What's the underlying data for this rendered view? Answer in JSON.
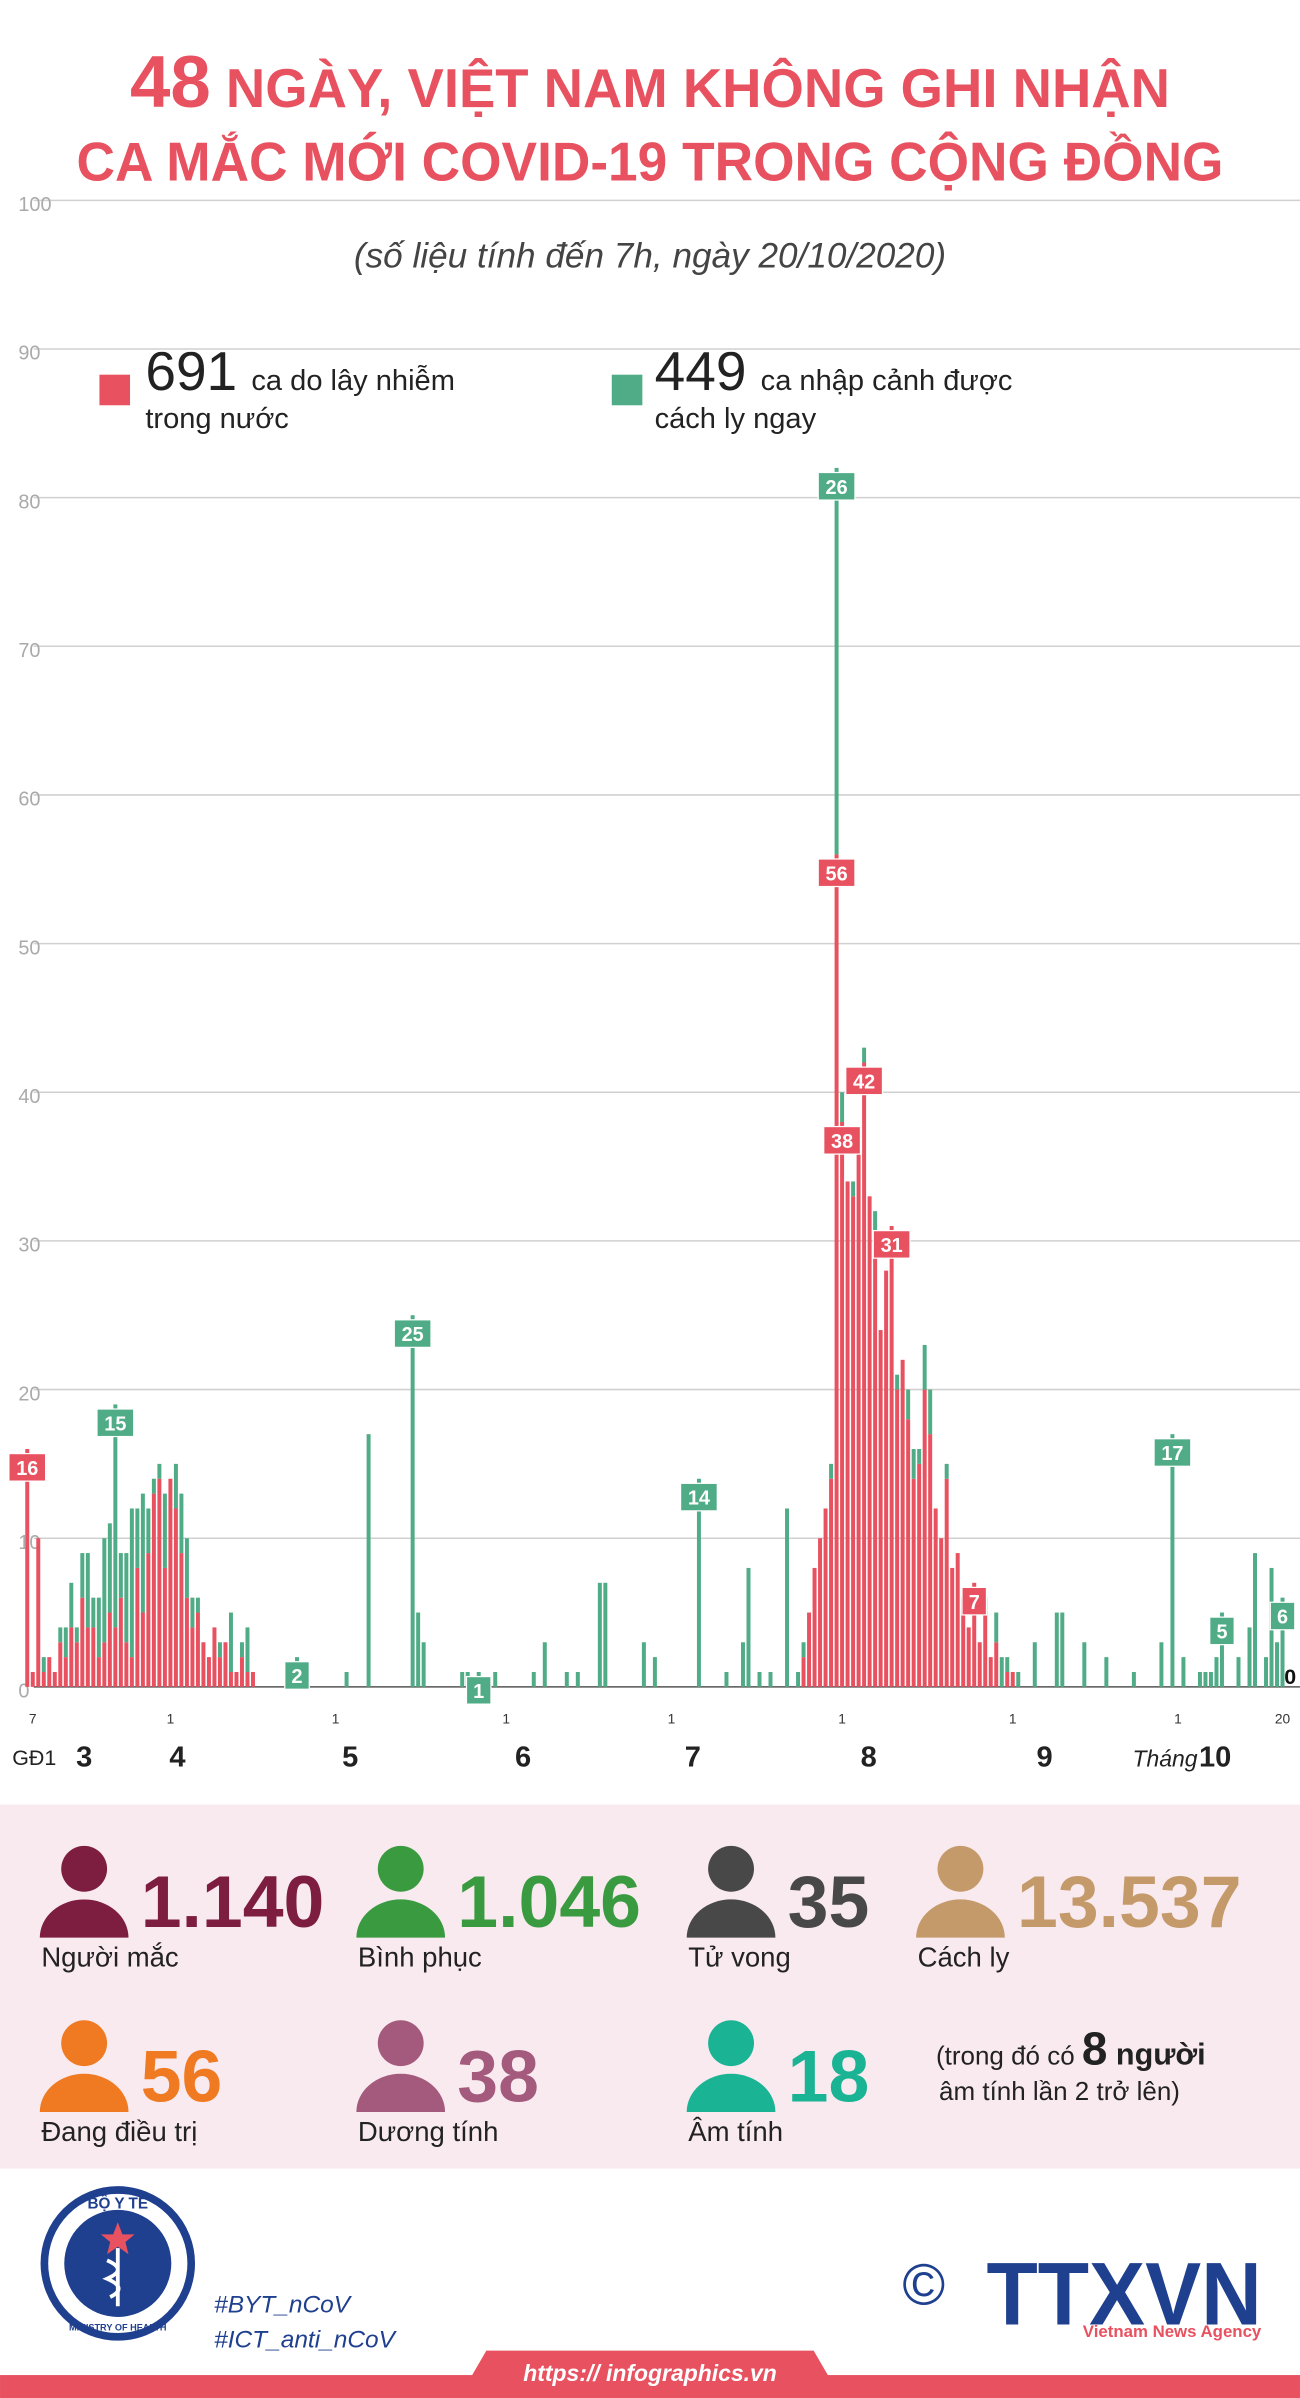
{
  "chart_data": {
    "type": "bar",
    "title": {
      "highlight": "48",
      "line1": "NGÀY, VIỆT NAM KHÔNG GHI NHẬN",
      "line2": "CA MẮC MỚI COVID-19 TRONG CỘNG ĐỒNG"
    },
    "subtitle": "(số liệu tính đến 7h, ngày 20/10/2020)",
    "phase_label": "GĐ1",
    "month_prefix": "Tháng",
    "month_labels": [
      "3",
      "4",
      "5",
      "6",
      "7",
      "8",
      "9",
      "10"
    ],
    "stacked": true,
    "grid": true,
    "ylim": [
      0,
      100
    ],
    "yticks": [
      0,
      10,
      20,
      30,
      40,
      50,
      60,
      70,
      80,
      90,
      100
    ],
    "categories": [
      null,
      "7",
      null,
      null,
      null,
      null,
      null,
      null,
      null,
      null,
      null,
      null,
      null,
      null,
      null,
      null,
      null,
      null,
      null,
      null,
      null,
      null,
      null,
      null,
      null,
      null,
      "1",
      null,
      null,
      null,
      null,
      null,
      null,
      null,
      null,
      null,
      null,
      null,
      null,
      null,
      null,
      null,
      null,
      null,
      null,
      null,
      null,
      null,
      null,
      null,
      null,
      null,
      null,
      null,
      null,
      null,
      "1",
      null,
      null,
      null,
      null,
      null,
      null,
      null,
      null,
      null,
      null,
      null,
      null,
      null,
      null,
      null,
      null,
      null,
      null,
      null,
      null,
      null,
      null,
      null,
      null,
      null,
      null,
      null,
      null,
      null,
      null,
      "1",
      null,
      null,
      null,
      null,
      null,
      null,
      null,
      null,
      null,
      null,
      null,
      null,
      null,
      null,
      null,
      null,
      null,
      null,
      null,
      null,
      null,
      null,
      null,
      null,
      null,
      null,
      null,
      null,
      null,
      "1",
      null,
      null,
      null,
      null,
      null,
      null,
      null,
      null,
      null,
      null,
      null,
      null,
      null,
      null,
      null,
      null,
      null,
      null,
      null,
      null,
      null,
      null,
      null,
      null,
      null,
      null,
      null,
      null,
      null,
      null,
      "1",
      null,
      null,
      null,
      null,
      null,
      null,
      null,
      null,
      null,
      null,
      null,
      null,
      null,
      null,
      null,
      null,
      null,
      null,
      null,
      null,
      null,
      null,
      null,
      null,
      null,
      null,
      null,
      null,
      null,
      null,
      "1",
      null,
      null,
      null,
      null,
      null,
      null,
      null,
      null,
      null,
      null,
      null,
      null,
      null,
      null,
      null,
      null,
      null,
      null,
      null,
      null,
      null,
      null,
      null,
      null,
      null,
      null,
      null,
      null,
      null,
      "1",
      null,
      null,
      null,
      null,
      null,
      null,
      null,
      null,
      null,
      null,
      null,
      null,
      null,
      null,
      null,
      null,
      null,
      null,
      "20"
    ],
    "series": [
      {
        "name": "ca do lây nhiễm trong nước",
        "total": 691,
        "color": "#e8515f",
        "labeled": [
          0,
          147,
          148,
          152,
          157,
          172,
          228
        ],
        "values": [
          16,
          1,
          10,
          1,
          2,
          1,
          3,
          2,
          4,
          3,
          6,
          4,
          4,
          2,
          3,
          5,
          4,
          6,
          3,
          2,
          8,
          5,
          9,
          13,
          14,
          8,
          14,
          12,
          9,
          6,
          4,
          5,
          3,
          2,
          4,
          2,
          3,
          1,
          1,
          2,
          1,
          1,
          0,
          0,
          0,
          0,
          0,
          0,
          0,
          0,
          0,
          0,
          0,
          0,
          0,
          0,
          0,
          0,
          0,
          0,
          0,
          0,
          0,
          0,
          0,
          0,
          0,
          0,
          0,
          0,
          0,
          0,
          0,
          0,
          0,
          0,
          0,
          0,
          0,
          0,
          0,
          0,
          0,
          0,
          0,
          0,
          0,
          0,
          0,
          0,
          0,
          0,
          0,
          0,
          0,
          0,
          0,
          0,
          0,
          0,
          0,
          0,
          0,
          0,
          0,
          0,
          0,
          0,
          0,
          0,
          0,
          0,
          0,
          0,
          0,
          0,
          0,
          0,
          0,
          0,
          0,
          0,
          0,
          0,
          0,
          0,
          0,
          0,
          0,
          0,
          0,
          0,
          0,
          0,
          0,
          0,
          0,
          0,
          0,
          0,
          0,
          2,
          5,
          8,
          10,
          12,
          14,
          56,
          38,
          34,
          33,
          36,
          42,
          33,
          30,
          24,
          28,
          31,
          20,
          22,
          18,
          14,
          15,
          20,
          17,
          12,
          10,
          14,
          8,
          9,
          5,
          4,
          7,
          3,
          5,
          2,
          3,
          0,
          1,
          1,
          0,
          0,
          0,
          0,
          0,
          0,
          0,
          0,
          0,
          0,
          0,
          0,
          0,
          0,
          0,
          0,
          0,
          0,
          0,
          0,
          0,
          0,
          0,
          0,
          0,
          0,
          0,
          0,
          0,
          0,
          0,
          0,
          0,
          0,
          0,
          0,
          0,
          0,
          0,
          0,
          0,
          0,
          0,
          0,
          0,
          0,
          0,
          0,
          0
        ]
      },
      {
        "name": "ca nhập cảnh được cách ly ngay",
        "total": 449,
        "color": "#4fac86",
        "labeled": [
          16,
          49,
          70,
          82,
          122,
          147,
          208,
          217,
          228
        ],
        "values": [
          0,
          0,
          0,
          1,
          0,
          0,
          1,
          2,
          3,
          1,
          3,
          5,
          2,
          4,
          7,
          6,
          15,
          3,
          6,
          10,
          4,
          8,
          3,
          1,
          1,
          5,
          0,
          3,
          4,
          4,
          2,
          1,
          0,
          0,
          0,
          1,
          0,
          4,
          0,
          1,
          3,
          0,
          0,
          0,
          0,
          0,
          0,
          0,
          0,
          2,
          0,
          0,
          0,
          0,
          0,
          0,
          0,
          0,
          1,
          0,
          0,
          0,
          17,
          0,
          0,
          0,
          0,
          0,
          0,
          0,
          25,
          5,
          3,
          0,
          0,
          0,
          0,
          0,
          0,
          1,
          1,
          0,
          1,
          0,
          0,
          1,
          0,
          0,
          0,
          0,
          0,
          0,
          1,
          0,
          3,
          0,
          0,
          0,
          1,
          0,
          1,
          0,
          0,
          0,
          7,
          7,
          0,
          0,
          0,
          0,
          0,
          0,
          3,
          0,
          2,
          0,
          0,
          0,
          0,
          0,
          0,
          0,
          14,
          0,
          0,
          0,
          0,
          1,
          0,
          0,
          3,
          8,
          0,
          1,
          0,
          1,
          0,
          0,
          12,
          0,
          1,
          1,
          0,
          0,
          0,
          0,
          1,
          26,
          2,
          0,
          1,
          0,
          1,
          0,
          2,
          0,
          0,
          0,
          1,
          0,
          2,
          2,
          1,
          3,
          3,
          0,
          0,
          1,
          0,
          0,
          1,
          0,
          0,
          0,
          1,
          0,
          2,
          2,
          1,
          0,
          1,
          0,
          0,
          3,
          0,
          0,
          0,
          5,
          5,
          0,
          0,
          0,
          3,
          0,
          0,
          0,
          2,
          0,
          0,
          0,
          0,
          1,
          0,
          0,
          0,
          0,
          3,
          0,
          17,
          0,
          2,
          0,
          0,
          1,
          1,
          1,
          2,
          5,
          0,
          0,
          2,
          0,
          4,
          9,
          0,
          2,
          8,
          3,
          6
        ]
      }
    ]
  },
  "summary": {
    "stats": [
      {
        "value": "1.140",
        "label": "Người mắc",
        "color": "#7d1d3f"
      },
      {
        "value": "1.046",
        "label": "Bình phục",
        "color": "#3a9a3f"
      },
      {
        "value": "35",
        "label": "Tử vong",
        "color": "#484848"
      },
      {
        "value": "13.537",
        "label": "Cách ly",
        "color": "#c59a6a"
      },
      {
        "value": "56",
        "label": "Đang điều trị",
        "color": "#f07a22"
      },
      {
        "value": "38",
        "label": "Dương tính",
        "color": "#a35a7c"
      },
      {
        "value": "18",
        "label": "Âm tính",
        "color": "#1ab394"
      }
    ],
    "note": {
      "before": "(trong đó có ",
      "number": "8",
      "unit": " người",
      "line2": "âm tính lần 2 trở lên)"
    }
  },
  "footer": {
    "logo_top": "BỘ Y TẾ",
    "logo_bottom": "MINISTRY OF HEALTH",
    "hashtags": [
      "#BYT_nCoV",
      "#ICT_anti_nCoV"
    ],
    "copyright": "©",
    "agency": "TTXVN",
    "agency_name": "Vietnam News Agency",
    "url": "https:// infographics.vn"
  }
}
